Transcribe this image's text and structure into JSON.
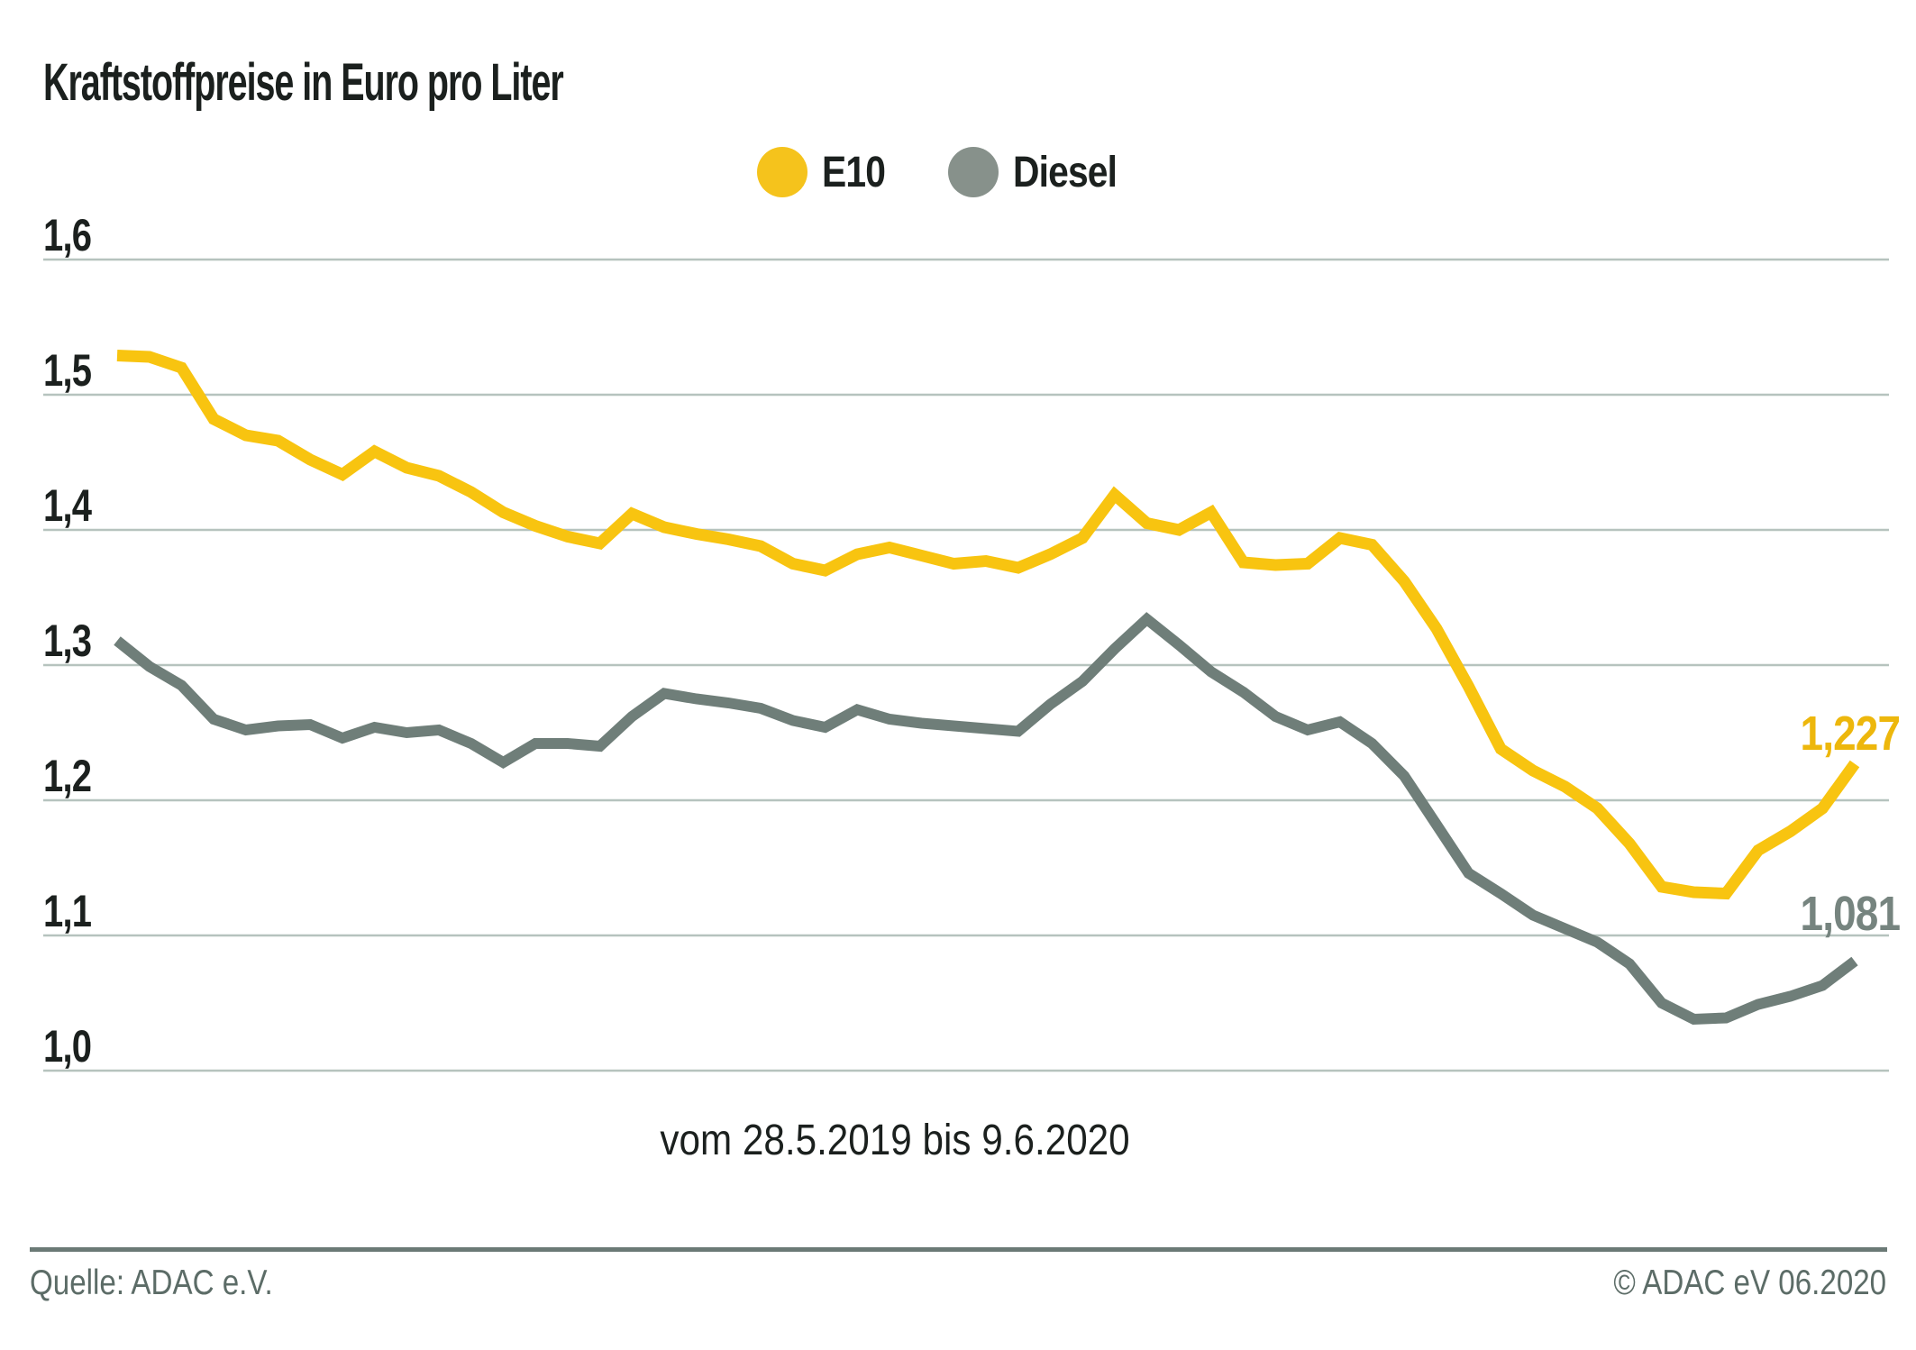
{
  "title": "Kraftstoffpreise in Euro pro Liter",
  "legend": {
    "items": [
      {
        "label": "E10",
        "color": "#f5c31c"
      },
      {
        "label": "Diesel",
        "color": "#87918b"
      }
    ]
  },
  "caption": "vom 28.5.2019 bis 9.6.2020",
  "footer": {
    "source": "Quelle: ADAC e.V.",
    "copyright": "© ADAC eV 06.2020"
  },
  "colors": {
    "e10_line": "#f8c410",
    "e10_end_label": "#edb70c",
    "diesel_line": "#6f7e79",
    "diesel_end_label": "#76847f",
    "gridline": "#b6c3be",
    "text": "#1b201e",
    "footer": "#5c6c67"
  },
  "chart_data": {
    "type": "line",
    "title": "Kraftstoffpreise in Euro pro Liter",
    "x_range_caption": "vom 28.5.2019 bis 9.6.2020",
    "x_note": "55 weekly readings from 28.5.2019 to 9.6.2020 (no x tick labels shown)",
    "ylabel": "Euro pro Liter",
    "ylim": [
      1.0,
      1.6
    ],
    "grid": true,
    "legend_position": "top",
    "yticks": [
      {
        "value": 1.6,
        "label": "1,6"
      },
      {
        "value": 1.5,
        "label": "1,5"
      },
      {
        "value": 1.4,
        "label": "1,4"
      },
      {
        "value": 1.3,
        "label": "1,3"
      },
      {
        "value": 1.2,
        "label": "1,2"
      },
      {
        "value": 1.1,
        "label": "1,1"
      },
      {
        "value": 1.0,
        "label": "1,0"
      }
    ],
    "series": [
      {
        "name": "E10",
        "color": "#f8c410",
        "stroke_width": 13,
        "values": [
          1.529,
          1.528,
          1.52,
          1.482,
          1.47,
          1.466,
          1.452,
          1.441,
          1.458,
          1.446,
          1.44,
          1.428,
          1.413,
          1.403,
          1.395,
          1.39,
          1.412,
          1.402,
          1.397,
          1.393,
          1.388,
          1.375,
          1.37,
          1.382,
          1.387,
          1.381,
          1.375,
          1.377,
          1.372,
          1.382,
          1.394,
          1.426,
          1.405,
          1.4,
          1.413,
          1.376,
          1.374,
          1.375,
          1.394,
          1.389,
          1.362,
          1.327,
          1.284,
          1.238,
          1.222,
          1.21,
          1.194,
          1.168,
          1.136,
          1.132,
          1.131,
          1.163,
          1.177,
          1.194,
          1.227
        ]
      },
      {
        "name": "Diesel",
        "color": "#6f7e79",
        "stroke_width": 12,
        "values": [
          1.318,
          1.299,
          1.285,
          1.26,
          1.252,
          1.255,
          1.256,
          1.246,
          1.254,
          1.25,
          1.252,
          1.242,
          1.228,
          1.242,
          1.242,
          1.24,
          1.262,
          1.279,
          1.275,
          1.272,
          1.268,
          1.259,
          1.254,
          1.267,
          1.26,
          1.257,
          1.255,
          1.253,
          1.251,
          1.271,
          1.288,
          1.312,
          1.334,
          1.315,
          1.295,
          1.28,
          1.262,
          1.252,
          1.258,
          1.242,
          1.218,
          1.182,
          1.146,
          1.131,
          1.115,
          1.105,
          1.095,
          1.079,
          1.05,
          1.038,
          1.039,
          1.049,
          1.055,
          1.063,
          1.081
        ]
      }
    ],
    "end_labels": [
      {
        "series": "E10",
        "text": "1,227",
        "color": "#edb70c"
      },
      {
        "series": "Diesel",
        "text": "1,081",
        "color": "#76847f"
      }
    ]
  }
}
